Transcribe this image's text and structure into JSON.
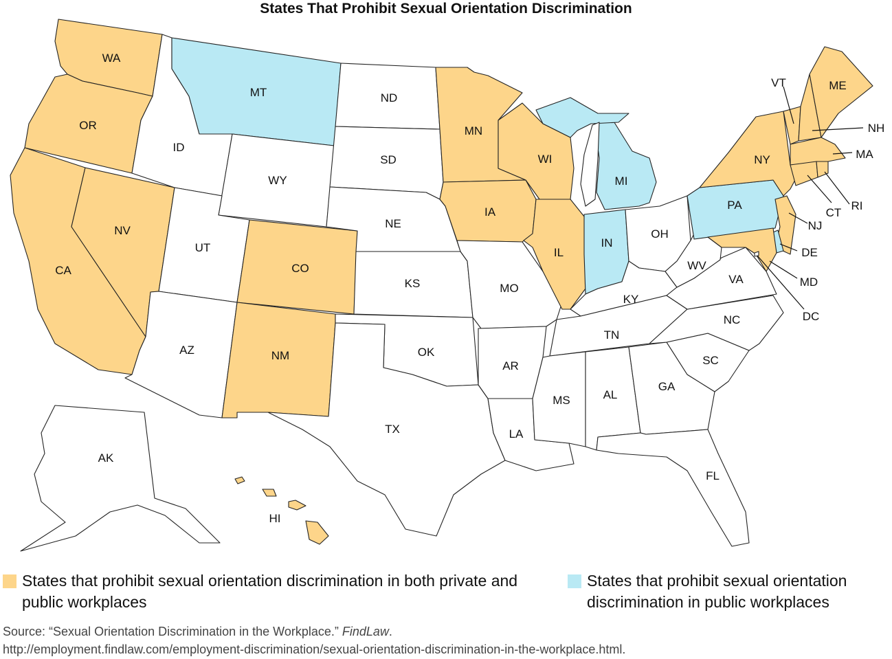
{
  "title": "States That Prohibit Sexual Orientation Discrimination",
  "colors": {
    "both": "#fdd58a",
    "public": "#b9e9f4",
    "none": "#ffffff",
    "border": "#222222"
  },
  "states": {
    "WA": "both",
    "OR": "both",
    "CA": "both",
    "NV": "both",
    "MN": "both",
    "IA": "both",
    "WI": "both",
    "IL": "both",
    "CO": "both",
    "NM": "both",
    "NY": "both",
    "VT": "both",
    "NH": "both",
    "ME": "both",
    "MA": "both",
    "CT": "both",
    "RI": "both",
    "NJ": "both",
    "MD": "both",
    "HI": "both",
    "MT": "public",
    "MI": "public",
    "IN": "public",
    "PA": "public",
    "DE": "public",
    "ID": "none",
    "UT": "none",
    "AZ": "none",
    "WY": "none",
    "ND": "none",
    "SD": "none",
    "NE": "none",
    "KS": "none",
    "OK": "none",
    "TX": "none",
    "MO": "none",
    "AR": "none",
    "LA": "none",
    "MS": "none",
    "AL": "none",
    "GA": "none",
    "FL": "none",
    "SC": "none",
    "NC": "none",
    "TN": "none",
    "KY": "none",
    "OH": "none",
    "WV": "none",
    "VA": "none",
    "AK": "none",
    "DC": "none"
  },
  "state_labels": [
    "WA",
    "OR",
    "CA",
    "NV",
    "ID",
    "MT",
    "WY",
    "UT",
    "AZ",
    "CO",
    "NM",
    "ND",
    "SD",
    "NE",
    "KS",
    "OK",
    "TX",
    "MN",
    "IA",
    "MO",
    "AR",
    "LA",
    "WI",
    "IL",
    "MI",
    "IN",
    "OH",
    "KY",
    "TN",
    "MS",
    "AL",
    "GA",
    "FL",
    "SC",
    "NC",
    "VA",
    "WV",
    "PA",
    "NY",
    "VT",
    "ME",
    "NH",
    "MA",
    "RI",
    "CT",
    "NJ",
    "DE",
    "MD",
    "DC",
    "AK",
    "HI"
  ],
  "legend": {
    "both_label": "States that prohibit sexual orientation discrimination in both private and public workplaces",
    "public_label": "States that prohibit sexual orientation discrimination in public workplaces"
  },
  "source": {
    "prefix": "Source: “Sexual Orientation Discrimination in the Workplace.” ",
    "publication": "FindLaw",
    "suffix": ".",
    "url": "http://employment.findlaw.com/employment-discrimination/sexual-orientation-discrimination-in-the-workplace.html."
  }
}
